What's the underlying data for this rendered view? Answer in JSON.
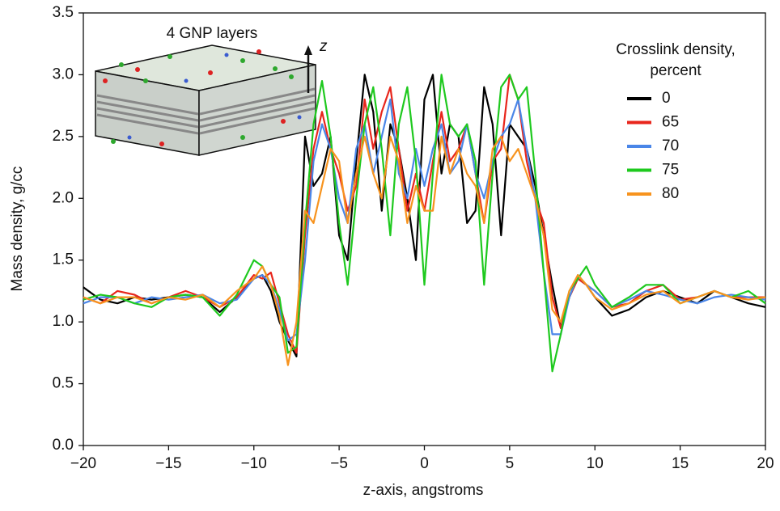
{
  "chart_data": {
    "type": "line",
    "x_label": "z-axis, angstroms",
    "y_label": "Mass density, g/cc",
    "legend_title": [
      "Crosslink density,",
      "percent"
    ],
    "annotations": [
      "4 GNP layers",
      "z"
    ],
    "legend": "upper right",
    "x": [
      -20,
      -19,
      -18,
      -17,
      -16,
      -15,
      -14,
      -13,
      -12,
      -11,
      -10,
      -9.5,
      -9,
      -8.5,
      -8,
      -7.5,
      -7,
      -6.5,
      -6,
      -5.5,
      -5,
      -4.5,
      -4,
      -3.5,
      -3,
      -2.5,
      -2,
      -1.5,
      -1,
      -0.5,
      0,
      0.5,
      1,
      1.5,
      2,
      2.5,
      3,
      3.5,
      4,
      4.5,
      5,
      5.5,
      6,
      6.5,
      7,
      7.5,
      8,
      8.5,
      9,
      9.5,
      10,
      11,
      12,
      13,
      14,
      15,
      16,
      17,
      18,
      19,
      20
    ],
    "series": [
      {
        "name": "0",
        "color": "#000000",
        "values": [
          1.28,
          1.18,
          1.15,
          1.2,
          1.18,
          1.2,
          1.22,
          1.2,
          1.08,
          1.2,
          1.35,
          1.38,
          1.25,
          1.0,
          0.85,
          0.72,
          2.5,
          2.1,
          2.2,
          2.5,
          1.7,
          1.5,
          2.3,
          3.0,
          2.7,
          1.9,
          2.6,
          2.4,
          2.0,
          1.5,
          2.8,
          3.0,
          2.2,
          2.6,
          2.5,
          1.8,
          1.9,
          2.9,
          2.6,
          1.7,
          2.6,
          2.5,
          2.4,
          2.1,
          1.7,
          1.3,
          0.95,
          1.2,
          1.35,
          1.3,
          1.2,
          1.05,
          1.1,
          1.2,
          1.25,
          1.2,
          1.15,
          1.25,
          1.2,
          1.15,
          1.12
        ]
      },
      {
        "name": "65",
        "color": "#e8261c",
        "values": [
          1.2,
          1.15,
          1.25,
          1.22,
          1.15,
          1.2,
          1.25,
          1.2,
          1.12,
          1.2,
          1.38,
          1.35,
          1.4,
          1.15,
          0.9,
          0.75,
          1.7,
          2.4,
          2.7,
          2.4,
          2.2,
          1.9,
          2.1,
          2.8,
          2.4,
          2.7,
          2.9,
          2.4,
          1.9,
          2.2,
          1.9,
          2.3,
          2.7,
          2.3,
          2.4,
          2.6,
          2.2,
          1.8,
          2.3,
          2.4,
          3.0,
          2.8,
          2.3,
          2.0,
          1.8,
          1.2,
          0.95,
          1.2,
          1.35,
          1.3,
          1.25,
          1.12,
          1.15,
          1.25,
          1.3,
          1.18,
          1.2,
          1.25,
          1.2,
          1.2,
          1.2
        ]
      },
      {
        "name": "70",
        "color": "#4a86e8",
        "values": [
          1.15,
          1.2,
          1.2,
          1.15,
          1.2,
          1.18,
          1.2,
          1.22,
          1.15,
          1.18,
          1.35,
          1.38,
          1.3,
          1.1,
          0.85,
          0.9,
          1.5,
          2.3,
          2.6,
          2.4,
          2.0,
          1.8,
          2.4,
          2.6,
          2.2,
          2.5,
          2.8,
          2.2,
          2.0,
          2.4,
          2.1,
          2.4,
          2.6,
          2.2,
          2.3,
          2.6,
          2.2,
          2.0,
          2.3,
          2.5,
          2.6,
          2.8,
          2.4,
          2.0,
          1.4,
          0.9,
          0.9,
          1.2,
          1.38,
          1.3,
          1.25,
          1.12,
          1.18,
          1.25,
          1.22,
          1.18,
          1.15,
          1.2,
          1.22,
          1.2,
          1.18
        ]
      },
      {
        "name": "75",
        "color": "#1ec91e",
        "values": [
          1.18,
          1.22,
          1.2,
          1.15,
          1.12,
          1.2,
          1.22,
          1.2,
          1.05,
          1.22,
          1.5,
          1.45,
          1.3,
          1.2,
          0.75,
          0.8,
          1.8,
          2.6,
          2.95,
          2.5,
          1.8,
          1.3,
          2.0,
          2.6,
          2.9,
          2.4,
          1.7,
          2.6,
          2.9,
          2.3,
          1.3,
          2.2,
          3.0,
          2.6,
          2.5,
          2.6,
          2.3,
          1.3,
          2.2,
          2.9,
          3.0,
          2.8,
          2.9,
          2.2,
          1.4,
          0.6,
          0.9,
          1.25,
          1.35,
          1.45,
          1.3,
          1.12,
          1.2,
          1.3,
          1.3,
          1.15,
          1.2,
          1.25,
          1.2,
          1.25,
          1.15
        ]
      },
      {
        "name": "80",
        "color": "#f7931e",
        "values": [
          1.2,
          1.15,
          1.2,
          1.2,
          1.15,
          1.2,
          1.18,
          1.22,
          1.12,
          1.25,
          1.35,
          1.45,
          1.3,
          1.05,
          0.65,
          1.0,
          1.9,
          1.8,
          2.1,
          2.4,
          2.3,
          1.8,
          2.2,
          2.5,
          2.2,
          2.0,
          2.5,
          2.3,
          1.8,
          2.1,
          1.9,
          1.9,
          2.5,
          2.2,
          2.4,
          2.2,
          2.1,
          1.8,
          2.4,
          2.5,
          2.3,
          2.4,
          2.2,
          2.0,
          1.7,
          1.1,
          1.0,
          1.25,
          1.38,
          1.3,
          1.2,
          1.1,
          1.15,
          1.22,
          1.25,
          1.15,
          1.2,
          1.25,
          1.2,
          1.18,
          1.2
        ]
      }
    ],
    "xlim": [
      -20,
      20
    ],
    "xticks": [
      {
        "value": -20,
        "label": "−20"
      },
      {
        "value": -15,
        "label": "−15"
      },
      {
        "value": -10,
        "label": "−10"
      },
      {
        "value": -5,
        "label": "−5"
      },
      0,
      5,
      10,
      15,
      20
    ],
    "ylim": [
      0,
      3.5
    ],
    "yticks": [
      {
        "value": 0,
        "label": "0.0"
      },
      {
        "value": 0.5,
        "label": "0.5"
      },
      {
        "value": 1,
        "label": "1.0"
      },
      {
        "value": 1.5,
        "label": "1.5"
      },
      {
        "value": 2,
        "label": "2.0"
      },
      {
        "value": 2.5,
        "label": "2.5"
      },
      {
        "value": 3,
        "label": "3.0"
      },
      {
        "value": 3.5,
        "label": "3.5"
      }
    ],
    "grid": false
  }
}
